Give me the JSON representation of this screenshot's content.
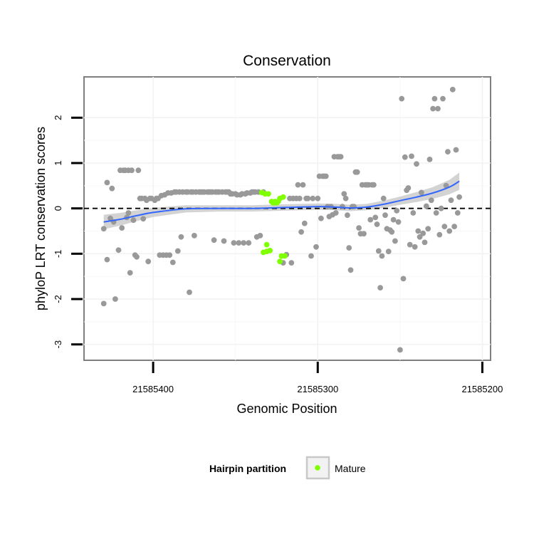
{
  "chart_data": {
    "type": "scatter",
    "title": "Conservation",
    "xlabel": "Genomic Position",
    "ylabel": "phyloP LRT conservation scores",
    "x_reversed": true,
    "xlim": [
      21585442,
      21585195
    ],
    "ylim": [
      -3.35,
      2.9
    ],
    "x_ticks": [
      21585400,
      21585300,
      21585200
    ],
    "x_tick_labels": [
      "21585400",
      "21585300",
      "21585200"
    ],
    "y_ticks": [
      -3,
      -2,
      -1,
      0,
      1,
      2
    ],
    "y_tick_labels": [
      "-3",
      "-2",
      "-1",
      "0",
      "1",
      "2"
    ],
    "grid": true,
    "reference_line": {
      "y": 0,
      "style": "dashed"
    },
    "legend": {
      "title": "Hairpin partition",
      "position": "bottom",
      "entries": [
        {
          "label": "Mature",
          "color": "#7fff00"
        }
      ]
    },
    "colors": {
      "background": "#ffffff",
      "other_points": "#999999",
      "mature": "#7fff00",
      "smooth_line": "#3366ff",
      "ribbon": "#c8c8c8"
    },
    "series": [
      {
        "color": "#999999",
        "points": [
          [
            21585430,
            -2.1
          ],
          [
            21585430,
            -0.45
          ],
          [
            21585428,
            -1.13
          ],
          [
            21585428,
            0.57
          ],
          [
            21585426,
            -0.22
          ],
          [
            21585425,
            0.44
          ],
          [
            21585424,
            -0.3
          ],
          [
            21585423,
            -2.0
          ],
          [
            21585421,
            -0.92
          ],
          [
            21585420,
            0.84
          ],
          [
            21585419,
            -0.43
          ],
          [
            21585418,
            0.84
          ],
          [
            21585417,
            0.84
          ],
          [
            21585416,
            -0.2
          ],
          [
            21585415,
            0.84
          ],
          [
            21585415,
            -0.1
          ],
          [
            21585414,
            -1.42
          ],
          [
            21585413,
            0.84
          ],
          [
            21585412,
            -0.26
          ],
          [
            21585411,
            -1.03
          ],
          [
            21585410,
            -1.07
          ],
          [
            21585409,
            0.84
          ],
          [
            21585408,
            0.22
          ],
          [
            21585407,
            0.22
          ],
          [
            21585406,
            -0.23
          ],
          [
            21585405,
            0.22
          ],
          [
            21585404,
            0.18
          ],
          [
            21585403,
            -1.17
          ],
          [
            21585402,
            0.22
          ],
          [
            21585401,
            0.22
          ],
          [
            21585399,
            0.18
          ],
          [
            21585398,
            0.22
          ],
          [
            21585397,
            0.22
          ],
          [
            21585396,
            -1.03
          ],
          [
            21585395,
            0.28
          ],
          [
            21585394,
            -1.03
          ],
          [
            21585393,
            0.3
          ],
          [
            21585392,
            -1.03
          ],
          [
            21585391,
            0.34
          ],
          [
            21585390,
            -1.03
          ],
          [
            21585389,
            0.34
          ],
          [
            21585388,
            -1.19
          ],
          [
            21585387,
            0.36
          ],
          [
            21585386,
            0.36
          ],
          [
            21585385,
            -0.94
          ],
          [
            21585384,
            0.36
          ],
          [
            21585383,
            -0.63
          ],
          [
            21585382,
            0.36
          ],
          [
            21585380,
            0.36
          ],
          [
            21585379,
            0.36
          ],
          [
            21585378,
            -1.85
          ],
          [
            21585377,
            0.36
          ],
          [
            21585376,
            0.36
          ],
          [
            21585375,
            -0.6
          ],
          [
            21585374,
            0.36
          ],
          [
            21585372,
            0.36
          ],
          [
            21585371,
            0.36
          ],
          [
            21585370,
            0.36
          ],
          [
            21585369,
            0.36
          ],
          [
            21585367,
            0.36
          ],
          [
            21585366,
            0.36
          ],
          [
            21585365,
            0.36
          ],
          [
            21585364,
            0.36
          ],
          [
            21585363,
            -0.7
          ],
          [
            21585362,
            0.36
          ],
          [
            21585361,
            0.36
          ],
          [
            21585360,
            0.36
          ],
          [
            21585358,
            0.36
          ],
          [
            21585357,
            -0.72
          ],
          [
            21585356,
            0.36
          ],
          [
            21585355,
            0.36
          ],
          [
            21585354,
            0.36
          ],
          [
            21585353,
            0.32
          ],
          [
            21585352,
            0.32
          ],
          [
            21585351,
            -0.76
          ],
          [
            21585350,
            0.32
          ],
          [
            21585349,
            0.3
          ],
          [
            21585348,
            -0.76
          ],
          [
            21585347,
            0.3
          ],
          [
            21585346,
            0.32
          ],
          [
            21585345,
            -0.76
          ],
          [
            21585344,
            0.32
          ],
          [
            21585343,
            0.34
          ],
          [
            21585342,
            -0.76
          ],
          [
            21585341,
            0.34
          ],
          [
            21585340,
            0.36
          ],
          [
            21585339,
            0.36
          ],
          [
            21585338,
            0.36
          ],
          [
            21585337,
            -0.63
          ],
          [
            21585336,
            0.36
          ],
          [
            21585335,
            -0.6
          ],
          [
            21585333,
            0.36
          ],
          [
            21585321,
            -1.2
          ],
          [
            21585319,
            -1.02
          ],
          [
            21585317,
            0.22
          ],
          [
            21585316,
            -1.2
          ],
          [
            21585315,
            0.22
          ],
          [
            21585313,
            0.22
          ],
          [
            21585312,
            0.52
          ],
          [
            21585311,
            0.22
          ],
          [
            21585310,
            -0.52
          ],
          [
            21585309,
            0.52
          ],
          [
            21585308,
            -0.33
          ],
          [
            21585307,
            0.22
          ],
          [
            21585306,
            0.22
          ],
          [
            21585304,
            -1.05
          ],
          [
            21585303,
            0.22
          ],
          [
            21585301,
            -0.85
          ],
          [
            21585300,
            0.22
          ],
          [
            21585299,
            0.71
          ],
          [
            21585298,
            -0.22
          ],
          [
            21585297,
            0.71
          ],
          [
            21585296,
            0.71
          ],
          [
            21585295,
            0.71
          ],
          [
            21585294,
            0.04
          ],
          [
            21585293,
            -0.18
          ],
          [
            21585292,
            0.04
          ],
          [
            21585291,
            -0.14
          ],
          [
            21585290,
            1.14
          ],
          [
            21585289,
            -0.1
          ],
          [
            21585288,
            1.14
          ],
          [
            21585287,
            1.14
          ],
          [
            21585286,
            1.14
          ],
          [
            21585285,
            0.04
          ],
          [
            21585284,
            0.32
          ],
          [
            21585283,
            0.22
          ],
          [
            21585282,
            -0.15
          ],
          [
            21585281,
            -0.87
          ],
          [
            21585280,
            -1.36
          ],
          [
            21585279,
            0.04
          ],
          [
            21585278,
            0.04
          ],
          [
            21585277,
            0.8
          ],
          [
            21585276,
            0.8
          ],
          [
            21585275,
            -0.43
          ],
          [
            21585274,
            -0.56
          ],
          [
            21585273,
            0.52
          ],
          [
            21585272,
            -0.56
          ],
          [
            21585271,
            0.52
          ],
          [
            21585270,
            0.52
          ],
          [
            21585269,
            0.52
          ],
          [
            21585268,
            -0.25
          ],
          [
            21585267,
            0.52
          ],
          [
            21585266,
            0.52
          ],
          [
            21585265,
            -0.2
          ],
          [
            21585264,
            -0.35
          ],
          [
            21585263,
            -0.94
          ],
          [
            21585262,
            -1.75
          ],
          [
            21585261,
            -1.05
          ],
          [
            21585260,
            0.22
          ],
          [
            21585259,
            -0.15
          ],
          [
            21585258,
            -0.45
          ],
          [
            21585257,
            -0.95
          ],
          [
            21585256,
            -0.48
          ],
          [
            21585255,
            -0.52
          ],
          [
            21585254,
            -0.25
          ],
          [
            21585253,
            -0.72
          ],
          [
            21585252,
            -0.05
          ],
          [
            21585251,
            -0.3
          ],
          [
            21585250,
            -3.12
          ],
          [
            21585249,
            2.42
          ],
          [
            21585248,
            -1.55
          ],
          [
            21585247,
            1.13
          ],
          [
            21585246,
            0.4
          ],
          [
            21585245,
            0.45
          ],
          [
            21585244,
            -0.8
          ],
          [
            21585243,
            1.15
          ],
          [
            21585242,
            -0.1
          ],
          [
            21585241,
            -0.85
          ],
          [
            21585240,
            0.98
          ],
          [
            21585239,
            -0.5
          ],
          [
            21585238,
            -0.63
          ],
          [
            21585237,
            0.35
          ],
          [
            21585236,
            -0.55
          ],
          [
            21585235,
            -0.75
          ],
          [
            21585234,
            0.05
          ],
          [
            21585233,
            -0.45
          ],
          [
            21585232,
            1.08
          ],
          [
            21585231,
            0.18
          ],
          [
            21585230,
            2.2
          ],
          [
            21585229,
            2.42
          ],
          [
            21585228,
            -0.1
          ],
          [
            21585227,
            2.2
          ],
          [
            21585226,
            -0.58
          ],
          [
            21585225,
            0.0
          ],
          [
            21585224,
            2.42
          ],
          [
            21585223,
            -0.4
          ],
          [
            21585222,
            0.5
          ],
          [
            21585221,
            1.25
          ],
          [
            21585220,
            -0.5
          ],
          [
            21585219,
            0.18
          ],
          [
            21585218,
            2.62
          ],
          [
            21585217,
            -0.4
          ],
          [
            21585216,
            1.29
          ],
          [
            21585215,
            -0.1
          ],
          [
            21585214,
            0.25
          ]
        ]
      },
      {
        "name": "Mature",
        "color": "#7fff00",
        "points": [
          [
            21585334,
            0.35
          ],
          [
            21585333,
            -0.97
          ],
          [
            21585332,
            0.32
          ],
          [
            21585331,
            -0.8
          ],
          [
            21585331,
            -0.95
          ],
          [
            21585330,
            0.32
          ],
          [
            21585329,
            -0.93
          ],
          [
            21585328,
            0.15
          ],
          [
            21585327,
            0.12
          ],
          [
            21585326,
            0.15
          ],
          [
            21585325,
            0.12
          ],
          [
            21585324,
            0.15
          ],
          [
            21585323,
            0.22
          ],
          [
            21585323,
            -1.17
          ],
          [
            21585322,
            -1.05
          ],
          [
            21585321,
            0.25
          ],
          [
            21585320,
            -1.05
          ]
        ]
      }
    ],
    "smooth": {
      "x": [
        21585430,
        21585420,
        21585410,
        21585400,
        21585380,
        21585360,
        21585340,
        21585320,
        21585300,
        21585290,
        21585280,
        21585270,
        21585260,
        21585250,
        21585240,
        21585230,
        21585220,
        21585214
      ],
      "y": [
        -0.3,
        -0.24,
        -0.16,
        -0.09,
        -0.01,
        0.0,
        0.0,
        0.02,
        0.04,
        0.03,
        0.01,
        0.03,
        0.09,
        0.17,
        0.25,
        0.34,
        0.47,
        0.6
      ],
      "se": [
        0.16,
        0.14,
        0.12,
        0.1,
        0.08,
        0.07,
        0.07,
        0.07,
        0.07,
        0.07,
        0.07,
        0.07,
        0.08,
        0.09,
        0.11,
        0.13,
        0.16,
        0.19
      ]
    }
  }
}
